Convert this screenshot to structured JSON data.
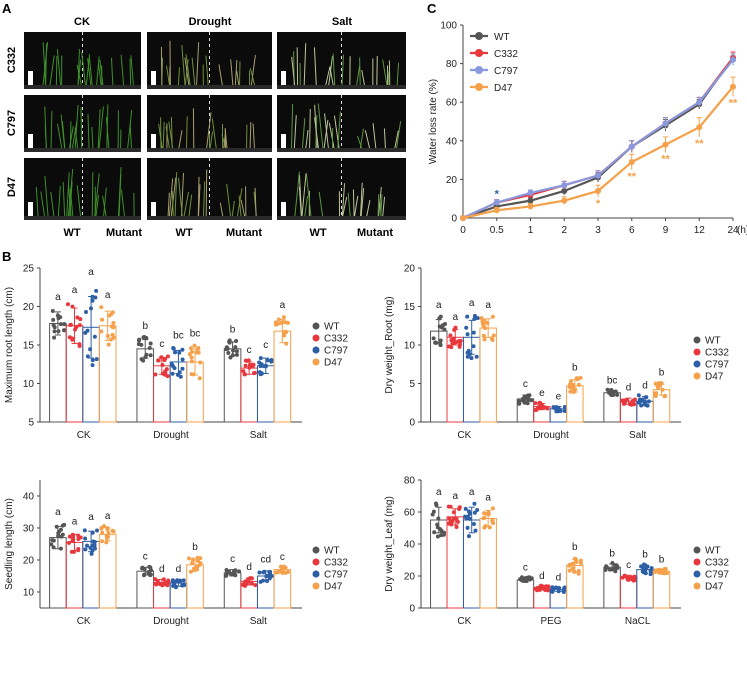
{
  "colors": {
    "WT": "#555555",
    "C332": "#e8383d",
    "C797": "#2d5fa6",
    "D47": "#f5a04a",
    "C797_lineC": "#8899dd"
  },
  "panelA": {
    "letter": "A",
    "columns": [
      "CK",
      "Drought",
      "Salt"
    ],
    "rows": [
      "C332",
      "C797",
      "D47"
    ],
    "bottom_labels": [
      "WT",
      "Mutant",
      "WT",
      "Mutant",
      "WT",
      "Mutant"
    ]
  },
  "chart_data": [
    {
      "id": "C",
      "letter": "C",
      "type": "line",
      "ylabel": "Water loss rate (%)",
      "xlabel": "(h)",
      "categories": [
        "0",
        "0.5",
        "1",
        "2",
        "3",
        "6",
        "9",
        "12",
        "24"
      ],
      "ylim": [
        0,
        100
      ],
      "yticks": [
        0,
        20,
        40,
        60,
        80,
        100
      ],
      "series": [
        {
          "name": "WT",
          "values": [
            0,
            6,
            9,
            14,
            21,
            37,
            48,
            59,
            83
          ],
          "err": [
            0,
            1.5,
            1.5,
            2,
            2.5,
            3,
            3,
            2.5,
            3
          ]
        },
        {
          "name": "C332",
          "values": [
            0,
            8,
            12,
            17,
            22,
            37,
            49,
            60,
            83
          ],
          "err": [
            0,
            1.5,
            1.5,
            2,
            2.5,
            3,
            3,
            2.5,
            3
          ]
        },
        {
          "name": "C797",
          "values": [
            0,
            8,
            13,
            17,
            22,
            37,
            49,
            60,
            82
          ],
          "err": [
            0,
            1.5,
            1.5,
            2,
            2.5,
            3,
            3,
            2.5,
            3
          ]
        },
        {
          "name": "D47",
          "values": [
            0,
            4,
            6,
            9,
            14,
            29,
            38,
            47,
            68
          ],
          "err": [
            0,
            1.5,
            1.5,
            2,
            3,
            4,
            4,
            5,
            5
          ]
        }
      ],
      "annotations": [
        {
          "x": "0.5",
          "text": "*",
          "color": "#2d5fa6"
        },
        {
          "x": "3",
          "text": "*",
          "color": "#f5a04a"
        },
        {
          "x": "6",
          "text": "**",
          "color": "#f5a04a"
        },
        {
          "x": "9",
          "text": "**",
          "color": "#f5a04a"
        },
        {
          "x": "12",
          "text": "**",
          "color": "#f5a04a"
        },
        {
          "x": "24",
          "text": "**",
          "color": "#f5a04a"
        }
      ]
    },
    {
      "id": "B1",
      "letter": "B",
      "type": "bar",
      "ylabel": "Maximum root length (cm)",
      "groups": [
        "CK",
        "Drought",
        "Salt"
      ],
      "series_names": [
        "WT",
        "C332",
        "C797",
        "D47"
      ],
      "ylim": [
        5,
        25
      ],
      "yticks": [
        5,
        10,
        15,
        20,
        25
      ],
      "means": [
        [
          17.8,
          17.5,
          17.3,
          17.5
        ],
        [
          14.5,
          12.3,
          12.8,
          12.8
        ],
        [
          14.5,
          12.0,
          12.3,
          16.8
        ]
      ],
      "sd": [
        [
          1.5,
          2.3,
          4.0,
          1.9
        ],
        [
          1.2,
          1.1,
          1.5,
          1.7
        ],
        [
          0.9,
          0.8,
          1.0,
          1.5
        ]
      ],
      "letters": [
        [
          "a",
          "a",
          "a",
          "a"
        ],
        [
          "b",
          "c",
          "bc",
          "bc"
        ],
        [
          "b",
          "c",
          "c",
          "a"
        ]
      ]
    },
    {
      "id": "B2",
      "type": "bar",
      "ylabel": "Dry weight_Root (mg)",
      "groups": [
        "CK",
        "Drought",
        "Salt"
      ],
      "series_names": [
        "WT",
        "C332",
        "C797",
        "D47"
      ],
      "ylim": [
        0,
        20
      ],
      "yticks": [
        0,
        5,
        10,
        15,
        20
      ],
      "means": [
        [
          11.8,
          11.0,
          11.0,
          12.2
        ],
        [
          3.0,
          2.0,
          1.7,
          4.7
        ],
        [
          3.8,
          2.7,
          2.7,
          4.2
        ]
      ],
      "sd": [
        [
          1.5,
          1.0,
          2.2,
          1.2
        ],
        [
          0.5,
          0.4,
          0.3,
          0.8
        ],
        [
          0.3,
          0.4,
          0.6,
          0.7
        ]
      ],
      "letters": [
        [
          "a",
          "a",
          "a",
          "a"
        ],
        [
          "c",
          "e",
          "e",
          "b"
        ],
        [
          "bc",
          "d",
          "d",
          "b"
        ]
      ]
    },
    {
      "id": "B3",
      "type": "bar",
      "ylabel": "Seedling length (cm)",
      "groups": [
        "CK",
        "Drought",
        "Salt"
      ],
      "series_names": [
        "WT",
        "C332",
        "C797",
        "D47"
      ],
      "ylim": [
        5,
        45
      ],
      "yticks": [
        10,
        20,
        30,
        40
      ],
      "means": [
        [
          27.0,
          25.5,
          25.8,
          28.0
        ],
        [
          16.5,
          13.0,
          12.8,
          18.5
        ],
        [
          16.0,
          13.3,
          15.0,
          17.0
        ]
      ],
      "sd": [
        [
          3.5,
          2.5,
          3.2,
          2.0
        ],
        [
          1.2,
          0.9,
          1.0,
          1.8
        ],
        [
          1.0,
          1.1,
          1.6,
          0.8
        ]
      ],
      "letters": [
        [
          "a",
          "a",
          "a",
          "a"
        ],
        [
          "c",
          "d",
          "d",
          "b"
        ],
        [
          "c",
          "d",
          "cd",
          "c"
        ]
      ]
    },
    {
      "id": "B4",
      "type": "bar",
      "ylabel": "Dry weight_Leaf (mg)",
      "groups": [
        "CK",
        "PEG",
        "NaCL"
      ],
      "series_names": [
        "WT",
        "C332",
        "C797",
        "D47"
      ],
      "ylim": [
        0,
        80
      ],
      "yticks": [
        0,
        20,
        40,
        60,
        80
      ],
      "means": [
        [
          55.0,
          57.0,
          55.0,
          56.0
        ],
        [
          17.5,
          12.5,
          11.5,
          26.5
        ],
        [
          25.5,
          19.0,
          24.0,
          23.0
        ]
      ],
      "sd": [
        [
          8.0,
          5.0,
          8.0,
          5.0
        ],
        [
          1.5,
          1.2,
          1.2,
          4.0
        ],
        [
          2.0,
          1.5,
          2.5,
          1.2
        ]
      ],
      "letters": [
        [
          "a",
          "a",
          "a",
          "a"
        ],
        [
          "c",
          "d",
          "d",
          "b"
        ],
        [
          "b",
          "c",
          "b",
          "b"
        ]
      ]
    }
  ]
}
